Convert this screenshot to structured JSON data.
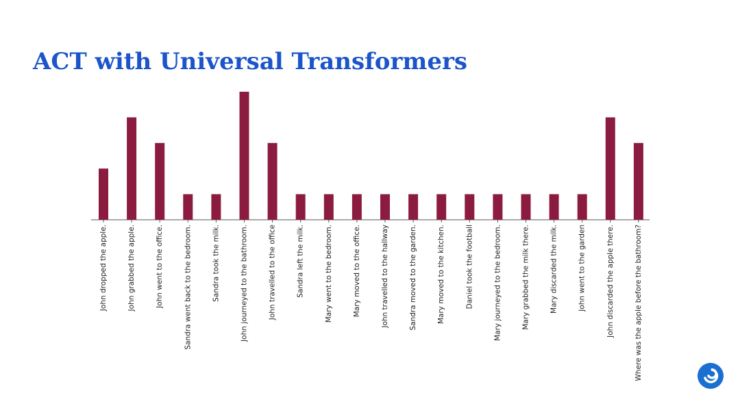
{
  "chart_data": {
    "type": "bar",
    "title": "ACT with Universal Transformers",
    "categories": [
      "John dropped the apple.",
      "John grabbed the apple.",
      "John went to the office.",
      "Sandra went back to the bedroom.",
      "Sandra took the milk.",
      "John journeyed to the bathroom.",
      "John travelled to the office",
      "Sandra left the milk.",
      "Mary went to the bedroom.",
      "Mary moved to the office.",
      "John travelled to the hallway",
      "Sandra moved to the garden.",
      "Mary moved to the kitchen.",
      "Daniel took the football",
      "Mary journeyed to the bedroom.",
      "Mary grabbed the milk there.",
      "Mary discarded the milk.",
      "John went to the garden",
      "John discarded the apple there.",
      "Where was the apple before the bathroom?"
    ],
    "values": [
      2,
      4,
      3,
      1,
      1,
      5,
      3,
      1,
      1,
      1,
      1,
      1,
      1,
      1,
      1,
      1,
      1,
      1,
      4,
      3
    ],
    "color": "#8b1c40"
  }
}
